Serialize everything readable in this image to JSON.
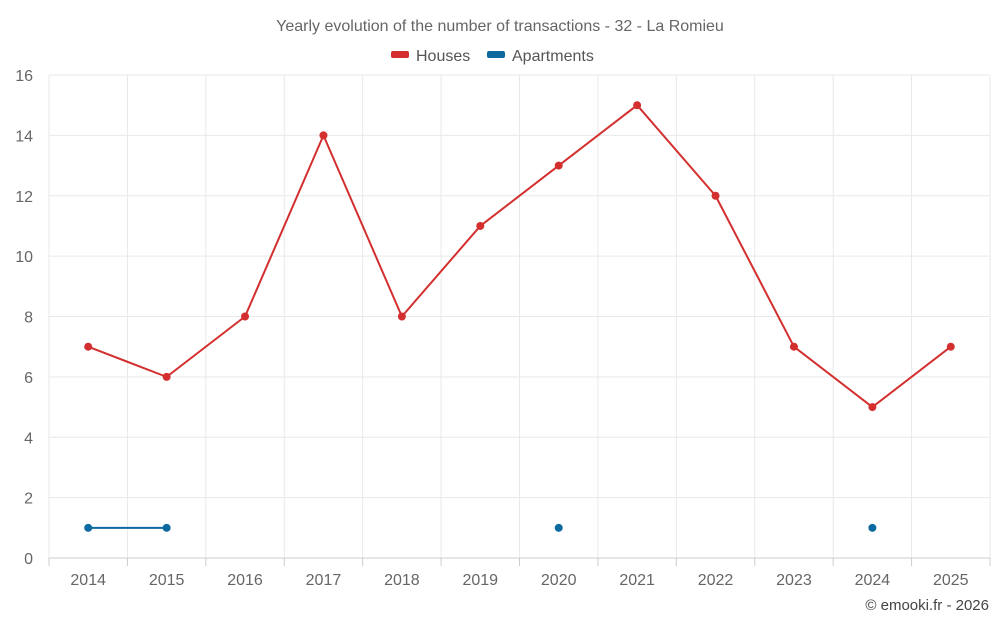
{
  "chart_data": {
    "type": "line",
    "title": "Yearly evolution of the number of transactions - 32 - La Romieu",
    "xlabel": "",
    "ylabel": "",
    "categories": [
      "2014",
      "2015",
      "2016",
      "2017",
      "2018",
      "2019",
      "2020",
      "2021",
      "2022",
      "2023",
      "2024",
      "2025"
    ],
    "ylim": [
      0,
      16
    ],
    "yticks": [
      0,
      2,
      4,
      6,
      8,
      10,
      12,
      14,
      16
    ],
    "grid": true,
    "legend_position": "top-center",
    "series": [
      {
        "name": "Houses",
        "color": "#d32f2f",
        "values": [
          7,
          6,
          8,
          14,
          8,
          11,
          13,
          15,
          12,
          7,
          5,
          7
        ]
      },
      {
        "name": "Apartments",
        "color": "#0d6aa0",
        "values": [
          1,
          1,
          null,
          null,
          null,
          null,
          1,
          null,
          null,
          null,
          1,
          null
        ]
      }
    ],
    "credit": "© emooki.fr - 2026"
  }
}
